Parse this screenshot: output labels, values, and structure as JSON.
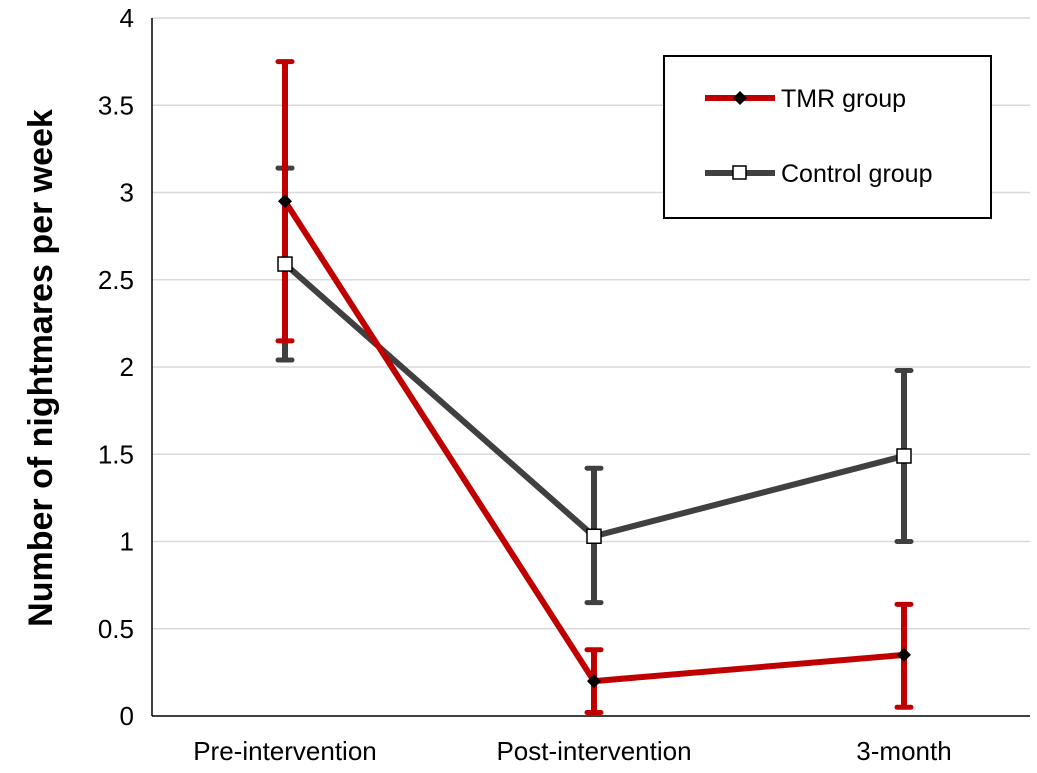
{
  "chart_data": {
    "type": "line",
    "title": "",
    "xlabel": "",
    "ylabel": "Number of nightmares per week",
    "categories": [
      "Pre-intervention",
      "Post-intervention",
      "3-month"
    ],
    "ylim": [
      0,
      4
    ],
    "yticks": [
      0,
      0.5,
      1,
      1.5,
      2,
      2.5,
      3,
      3.5,
      4
    ],
    "ytick_labels": [
      "0",
      "0.5",
      "1",
      "1.5",
      "2",
      "2.5",
      "3",
      "3.5",
      "4"
    ],
    "grid": true,
    "legend_position": "top-right",
    "series": [
      {
        "name": "TMR group",
        "color": "#c00000",
        "marker": "filled-diamond",
        "values": [
          2.95,
          0.2,
          0.35
        ],
        "error_low": [
          2.15,
          0.02,
          0.05
        ],
        "error_high": [
          3.75,
          0.38,
          0.64
        ]
      },
      {
        "name": "Control group",
        "color": "#404040",
        "marker": "open-square",
        "values": [
          2.59,
          1.03,
          1.49
        ],
        "error_low": [
          2.04,
          0.65,
          1.0
        ],
        "error_high": [
          3.14,
          1.42,
          1.98
        ]
      }
    ]
  }
}
